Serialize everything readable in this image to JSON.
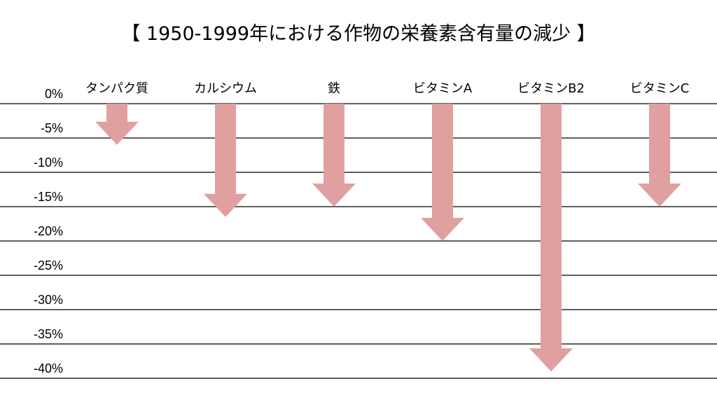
{
  "chart_data": {
    "type": "bar",
    "title": "【 1950-1999年における作物の栄養素含有量の減少 】",
    "categories": [
      "タンパク質",
      "カルシウム",
      "鉄",
      "ビタミンA",
      "ビタミンB2",
      "ビタミンC"
    ],
    "values": [
      -6,
      -16.5,
      -15,
      -20,
      -39,
      -15
    ],
    "yticks": [
      "0%",
      "-5%",
      "-10%",
      "-15%",
      "-20%",
      "-25%",
      "-30%",
      "-35%",
      "-40%"
    ],
    "ylim": [
      -40,
      0
    ],
    "grid": true,
    "arrow_color": "#e0a0a0",
    "line_color": "#000000"
  }
}
